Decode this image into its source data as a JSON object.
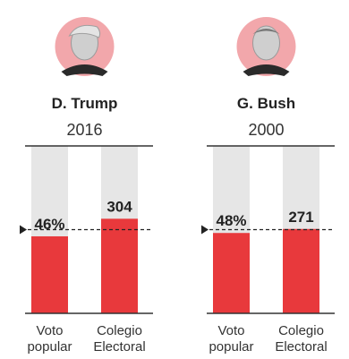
{
  "colors": {
    "bar": "#e8393c",
    "track": "#e6e6e6",
    "avatar_bg": "#f2a7ab",
    "axis": "#333333"
  },
  "chart_data": [
    {
      "type": "bar",
      "title": "D. Trump",
      "subtitle": "2016",
      "portrait_icon": "portrait-trump-icon",
      "categories": [
        "Voto popular",
        "Colegio Electoral"
      ],
      "category_lines": [
        [
          "Voto",
          "popular"
        ],
        [
          "Colegio",
          "Electoral"
        ]
      ],
      "values": [
        46,
        304
      ],
      "value_labels": [
        "46%",
        "304"
      ],
      "fill_fraction": [
        0.46,
        0.565
      ],
      "threshold_fraction": 0.5
    },
    {
      "type": "bar",
      "title": "G. Bush",
      "subtitle": "2000",
      "portrait_icon": "portrait-bush-icon",
      "categories": [
        "Voto popular",
        "Colegio Electoral"
      ],
      "category_lines": [
        [
          "Voto",
          "popular"
        ],
        [
          "Colegio",
          "Electoral"
        ]
      ],
      "values": [
        48,
        271
      ],
      "value_labels": [
        "48%",
        "271"
      ],
      "fill_fraction": [
        0.48,
        0.504
      ],
      "threshold_fraction": 0.5
    }
  ]
}
